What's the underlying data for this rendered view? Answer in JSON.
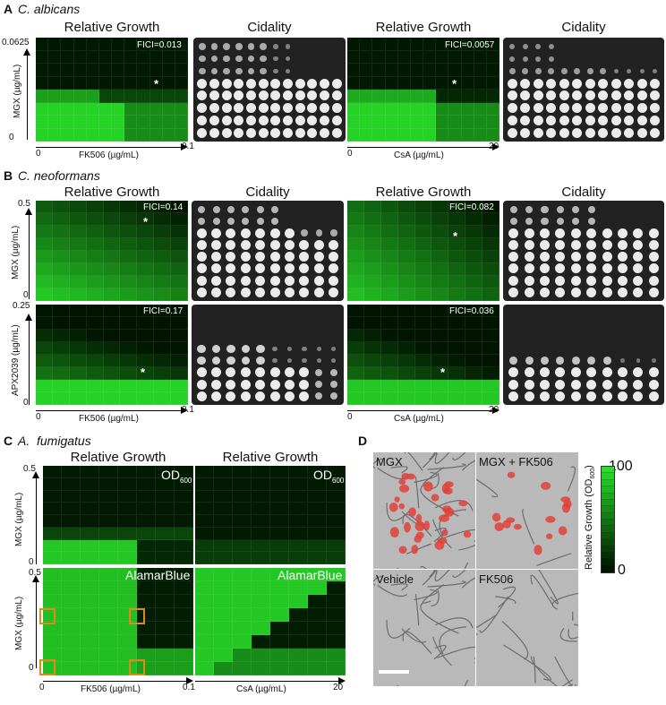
{
  "panelA": {
    "letter": "A",
    "species": "C. albicans",
    "title_rg1": "Relative Growth",
    "title_cid1": "Cidality",
    "title_rg2": "Relative Growth",
    "title_cid2": "Cidality",
    "fici1": "FICI=0.013",
    "fici2": "FICI=0.0057",
    "y_top": "0.0625",
    "y_bot": "0",
    "ylabel": "MGX (µg/mL)",
    "x1_left": "0",
    "x1_right": "0.1",
    "x1_label": "FK506 (µg/mL)",
    "x2_left": "0",
    "x2_right": "20",
    "x2_label": "CsA (µg/mL)",
    "star": "*"
  },
  "panelB": {
    "letter": "B",
    "species": "C. neoformans",
    "title_rg1": "Relative Growth",
    "title_cid1": "Cidality",
    "title_rg2": "Relative Growth",
    "title_cid2": "Cidality",
    "fici_mgx_fk": "FICI=0.14",
    "fici_mgx_csa": "FICI=0.082",
    "fici_apx_fk": "FICI=0.17",
    "fici_apx_csa": "FICI=0.036",
    "y1_top": "0.5",
    "y1_bot": "0",
    "y1_label": "MGX (µg/mL)",
    "y2_top": "0.25",
    "y2_bot": "0",
    "y2_label": "APX2039 (µg/mL)",
    "x1_left": "0",
    "x1_right": "0.1",
    "x1_label": "FK506 (µg/mL)",
    "x2_left": "0",
    "x2_right": "20",
    "x2_label": "CsA (µg/mL)",
    "star": "*"
  },
  "panelC": {
    "letter": "C",
    "species": "A.  fumigatus",
    "title1": "Relative Growth",
    "title2": "Relative Growth",
    "od_main": "OD",
    "od_sub": "600",
    "alamar": "AlamarBlue",
    "y1_top": "0.5",
    "y1_bot": "0",
    "y_label": "MGX (µg/mL)",
    "y2_top": "0.5",
    "y2_bot": "0",
    "x1_left": "0",
    "x1_right": "0.1",
    "x1_label": "FK506 (µg/mL)",
    "x2_left": "0",
    "x2_right": "20",
    "x2_label": "CsA (µg/mL)"
  },
  "panelD": {
    "letter": "D",
    "labels": [
      "MGX",
      "MGX + FK506",
      "Vehicle",
      "FK506"
    ]
  },
  "colorbar": {
    "max": "100",
    "min": "0",
    "label": "Relative Growth (OD",
    "label_sub": "600",
    "label_end": ")",
    "color_high": "#2ee02e",
    "color_low": "#000000"
  },
  "colors": {
    "growth": "#2fd62f",
    "highlight_box": "#e08a1a"
  }
}
